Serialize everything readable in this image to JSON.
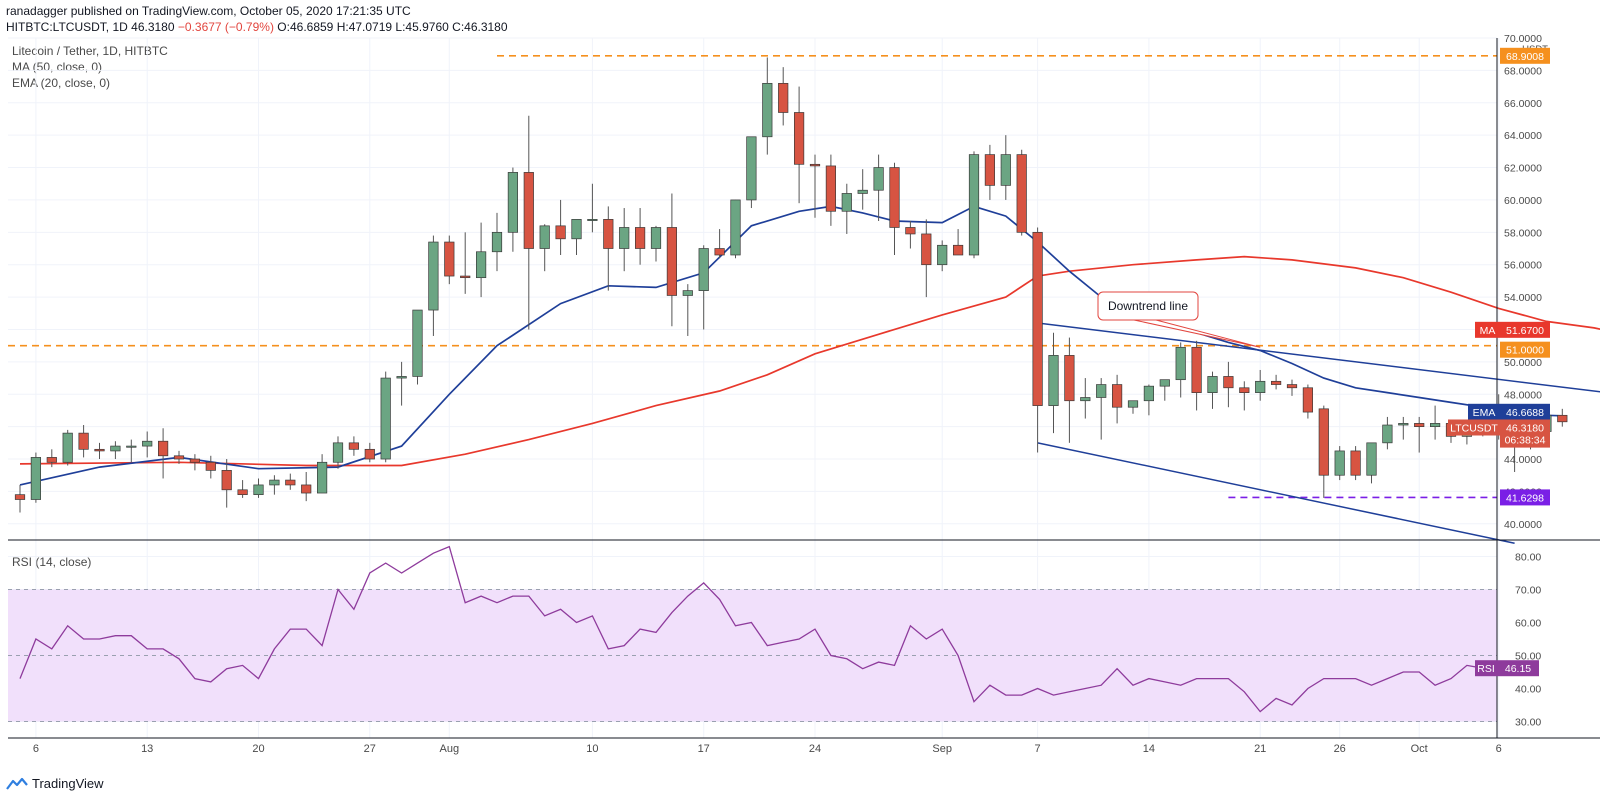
{
  "header": {
    "publisher_line": "ranadagger published on TradingView.com, October 05, 2020 17:21:35 UTC",
    "symbol": "HITBTC:LTCUSDT, 1D",
    "last": "46.3180",
    "change": "−0.3677 (−0.79%)",
    "open": "O:46.6859",
    "high": "H:47.0719",
    "low": "L:45.9760",
    "close": "C:46.3180"
  },
  "legend": {
    "title": "Litecoin / Tether, 1D, HITBTC",
    "ma": "MA (50, close, 0)",
    "ema": "EMA (20, close, 0)",
    "rsi": "RSI (14, close)"
  },
  "footer": {
    "brand": "TradingView",
    "icon": "tradingview-logo-icon"
  },
  "colors": {
    "up": "#6ba583",
    "down": "#d75442",
    "ema": "#1f3f99",
    "ma": "#e8382c",
    "rsi": "#8e3b9c",
    "rsi_band": "#f1e0fb",
    "level": "#f5901e",
    "support": "#7a1fe6",
    "trend": "#1f3f99"
  },
  "chart_data": [
    {
      "type": "candlestick",
      "title": "Litecoin / Tether, 1D, HITBTC",
      "currency": "USDT",
      "ylim": [
        39,
        70
      ],
      "y_ticks": [
        "40.0000",
        "42.0000",
        "44.0000",
        "46.0000",
        "48.0000",
        "50.0000",
        "52.0000",
        "54.0000",
        "56.0000",
        "58.0000",
        "60.0000",
        "62.0000",
        "64.0000",
        "66.0000",
        "68.0000",
        "70.0000"
      ],
      "x_ticks": [
        {
          "label": "6",
          "i": 1
        },
        {
          "label": "13",
          "i": 8
        },
        {
          "label": "20",
          "i": 15
        },
        {
          "label": "27",
          "i": 22
        },
        {
          "label": "Aug",
          "i": 27
        },
        {
          "label": "10",
          "i": 36
        },
        {
          "label": "17",
          "i": 43
        },
        {
          "label": "24",
          "i": 50
        },
        {
          "label": "Sep",
          "i": 58
        },
        {
          "label": "7",
          "i": 64
        },
        {
          "label": "14",
          "i": 71
        },
        {
          "label": "21",
          "i": 78
        },
        {
          "label": "26",
          "i": 83
        },
        {
          "label": "Oct",
          "i": 88
        },
        {
          "label": "6",
          "i": 93
        }
      ],
      "ohlc": [
        [
          41.8,
          42.4,
          40.7,
          41.5
        ],
        [
          41.5,
          44.4,
          41.3,
          44.1
        ],
        [
          44.1,
          44.6,
          43.5,
          43.8
        ],
        [
          43.8,
          45.8,
          43.6,
          45.6
        ],
        [
          45.6,
          46.1,
          44.1,
          44.6
        ],
        [
          44.6,
          45.0,
          44.0,
          44.5
        ],
        [
          44.5,
          45.1,
          44.0,
          44.8
        ],
        [
          44.8,
          45.2,
          43.8,
          44.8
        ],
        [
          44.8,
          45.7,
          44.1,
          45.1
        ],
        [
          45.1,
          45.9,
          42.8,
          44.2
        ],
        [
          44.2,
          44.5,
          43.7,
          44.0
        ],
        [
          44.0,
          44.3,
          43.3,
          43.8
        ],
        [
          43.8,
          44.2,
          42.8,
          43.3
        ],
        [
          43.3,
          44.0,
          41.0,
          42.1
        ],
        [
          42.1,
          42.7,
          41.6,
          41.8
        ],
        [
          41.8,
          42.8,
          41.6,
          42.4
        ],
        [
          42.4,
          43.0,
          41.8,
          42.7
        ],
        [
          42.7,
          43.1,
          42.1,
          42.4
        ],
        [
          42.4,
          43.2,
          41.4,
          41.9
        ],
        [
          41.9,
          44.3,
          41.9,
          43.8
        ],
        [
          43.8,
          45.4,
          43.4,
          45.0
        ],
        [
          45.0,
          45.4,
          44.2,
          44.6
        ],
        [
          44.6,
          45.0,
          43.8,
          44.0
        ],
        [
          44.0,
          49.4,
          43.8,
          49.0
        ],
        [
          49.0,
          50.0,
          47.3,
          49.1
        ],
        [
          49.1,
          53.2,
          48.6,
          53.2
        ],
        [
          53.2,
          57.8,
          51.6,
          57.4
        ],
        [
          57.4,
          57.8,
          54.8,
          55.3
        ],
        [
          55.3,
          58.0,
          54.2,
          55.2
        ],
        [
          55.2,
          58.6,
          54.0,
          56.8
        ],
        [
          56.8,
          59.2,
          55.6,
          58.0
        ],
        [
          58.0,
          62.0,
          56.8,
          61.7
        ],
        [
          61.7,
          65.2,
          52.0,
          57.0
        ],
        [
          57.0,
          58.5,
          55.6,
          58.4
        ],
        [
          58.4,
          60.0,
          56.6,
          57.6
        ],
        [
          57.6,
          58.5,
          56.6,
          58.8
        ],
        [
          58.8,
          61.0,
          58.0,
          58.8
        ],
        [
          58.8,
          59.6,
          54.4,
          57.0
        ],
        [
          57.0,
          59.5,
          55.6,
          58.3
        ],
        [
          58.3,
          59.5,
          56.0,
          57.0
        ],
        [
          57.0,
          58.4,
          56.2,
          58.3
        ],
        [
          58.3,
          60.4,
          52.2,
          54.1
        ],
        [
          54.1,
          54.8,
          51.6,
          54.4
        ],
        [
          54.4,
          57.2,
          52.0,
          57.0
        ],
        [
          57.0,
          58.2,
          56.4,
          56.6
        ],
        [
          56.6,
          60.0,
          56.4,
          60.0
        ],
        [
          60.0,
          63.8,
          59.5,
          63.9
        ],
        [
          63.9,
          68.8,
          62.8,
          67.2
        ],
        [
          67.2,
          68.2,
          64.6,
          65.4
        ],
        [
          65.4,
          67.0,
          59.8,
          62.2
        ],
        [
          62.2,
          62.8,
          58.9,
          62.1
        ],
        [
          62.1,
          62.8,
          58.4,
          59.3
        ],
        [
          59.3,
          61.0,
          57.9,
          60.4
        ],
        [
          60.4,
          61.9,
          59.4,
          60.6
        ],
        [
          60.6,
          62.8,
          58.7,
          62.0
        ],
        [
          62.0,
          62.3,
          56.6,
          58.3
        ],
        [
          58.3,
          58.7,
          57.0,
          57.9
        ],
        [
          57.9,
          58.8,
          54.0,
          56.0
        ],
        [
          56.0,
          57.5,
          55.6,
          57.2
        ],
        [
          57.2,
          58.2,
          56.7,
          56.6
        ],
        [
          56.6,
          63.0,
          56.4,
          62.8
        ],
        [
          62.8,
          63.4,
          60.0,
          60.9
        ],
        [
          60.9,
          64.0,
          60.0,
          62.8
        ],
        [
          62.8,
          63.1,
          57.8,
          58.0
        ],
        [
          58.0,
          58.3,
          44.4,
          47.3
        ],
        [
          47.3,
          51.8,
          45.6,
          50.4
        ],
        [
          50.4,
          51.5,
          45.0,
          47.6
        ],
        [
          47.6,
          49.0,
          46.5,
          47.8
        ],
        [
          47.8,
          49.0,
          45.2,
          48.6
        ],
        [
          48.6,
          49.2,
          46.2,
          47.2
        ],
        [
          47.2,
          47.6,
          46.8,
          47.6
        ],
        [
          47.6,
          48.6,
          46.7,
          48.5
        ],
        [
          48.5,
          48.9,
          47.6,
          48.9
        ],
        [
          48.9,
          51.2,
          47.8,
          50.9
        ],
        [
          50.9,
          51.3,
          47.0,
          48.1
        ],
        [
          48.1,
          49.4,
          47.1,
          49.1
        ],
        [
          49.1,
          50.0,
          47.2,
          48.4
        ],
        [
          48.4,
          48.8,
          47.0,
          48.1
        ],
        [
          48.1,
          49.5,
          47.6,
          48.8
        ],
        [
          48.8,
          49.2,
          48.3,
          48.6
        ],
        [
          48.6,
          48.9,
          47.9,
          48.4
        ],
        [
          48.4,
          48.6,
          46.5,
          46.9
        ],
        [
          47.1,
          47.3,
          41.6,
          43.0
        ],
        [
          43.0,
          44.8,
          42.7,
          44.5
        ],
        [
          44.5,
          44.8,
          42.7,
          43.0
        ],
        [
          43.0,
          45.0,
          42.5,
          45.0
        ],
        [
          45.0,
          46.6,
          44.6,
          46.1
        ],
        [
          46.1,
          46.6,
          45.2,
          46.2
        ],
        [
          46.2,
          46.6,
          44.4,
          46.0
        ],
        [
          46.0,
          47.3,
          45.2,
          46.2
        ],
        [
          46.2,
          46.4,
          45.0,
          45.4
        ],
        [
          45.4,
          46.4,
          44.9,
          45.9
        ],
        [
          45.9,
          46.8,
          45.4,
          46.1
        ],
        [
          46.1,
          48.0,
          45.2,
          45.8
        ],
        [
          46.2,
          46.4,
          43.2,
          45.0
        ],
        [
          45.0,
          45.8,
          44.6,
          45.7
        ],
        [
          45.7,
          46.8,
          45.4,
          46.7
        ],
        [
          46.7,
          47.1,
          46.0,
          46.3
        ]
      ],
      "ema20": [
        [
          0,
          42.4
        ],
        [
          5,
          43.5
        ],
        [
          10,
          44.1
        ],
        [
          15,
          43.4
        ],
        [
          20,
          43.5
        ],
        [
          24,
          44.8
        ],
        [
          27,
          48.0
        ],
        [
          30,
          51.0
        ],
        [
          34,
          53.6
        ],
        [
          37,
          54.7
        ],
        [
          40,
          54.6
        ],
        [
          43,
          55.5
        ],
        [
          46,
          58.4
        ],
        [
          49,
          59.3
        ],
        [
          51,
          59.6
        ],
        [
          53,
          59.2
        ],
        [
          55,
          58.7
        ],
        [
          58,
          58.6
        ],
        [
          60,
          59.6
        ],
        [
          62,
          59.0
        ],
        [
          64,
          57.4
        ],
        [
          66,
          55.6
        ],
        [
          68,
          54.0
        ],
        [
          70,
          52.8
        ],
        [
          72,
          52.3
        ],
        [
          74,
          51.8
        ],
        [
          76,
          51.2
        ],
        [
          78,
          50.7
        ],
        [
          80,
          49.9
        ],
        [
          82,
          49.0
        ],
        [
          84,
          48.4
        ],
        [
          86,
          48.1
        ],
        [
          88,
          47.8
        ],
        [
          90,
          47.5
        ],
        [
          92,
          47.2
        ],
        [
          94,
          46.9
        ],
        [
          96,
          46.7
        ],
        [
          97,
          46.67
        ]
      ],
      "ma50": [
        [
          0,
          43.7
        ],
        [
          10,
          43.8
        ],
        [
          18,
          43.6
        ],
        [
          24,
          43.6
        ],
        [
          28,
          44.3
        ],
        [
          32,
          45.2
        ],
        [
          36,
          46.2
        ],
        [
          40,
          47.3
        ],
        [
          44,
          48.2
        ],
        [
          47,
          49.2
        ],
        [
          50,
          50.5
        ],
        [
          54,
          51.7
        ],
        [
          58,
          52.9
        ],
        [
          62,
          54.0
        ],
        [
          64,
          55.3
        ],
        [
          66,
          55.6
        ],
        [
          70,
          56.0
        ],
        [
          74,
          56.3
        ],
        [
          77,
          56.5
        ],
        [
          80,
          56.3
        ],
        [
          84,
          55.8
        ],
        [
          87,
          55.2
        ],
        [
          90,
          54.3
        ],
        [
          93,
          53.3
        ],
        [
          96,
          52.5
        ],
        [
          99,
          52.1
        ],
        [
          101,
          51.67
        ]
      ],
      "trendlines": [
        {
          "label": "Downtrend line",
          "from": [
            64,
            52.4
          ],
          "to": [
            104,
            47.6
          ]
        },
        {
          "label": "",
          "from": [
            64,
            45.0
          ],
          "to": [
            94,
            38.8
          ]
        }
      ],
      "levels": [
        {
          "value": 68.9008,
          "label": "68.9008",
          "color": "orange"
        },
        {
          "value": 51.0,
          "label": "51.0000",
          "color": "orange"
        },
        {
          "value": 41.6298,
          "label": "41.6298",
          "color": "purple"
        }
      ],
      "price_tags": [
        {
          "name": "MA",
          "value": "51.6700",
          "y": 51.67
        },
        {
          "name": "EMA",
          "value": "46.6688",
          "y": 46.67
        },
        {
          "name": "LTCUSDT",
          "value": "46.3180",
          "y": 46.318
        },
        {
          "name": "",
          "value": "06:38:34",
          "y": 45.2
        }
      ],
      "annotation": {
        "text": "Downtrend line",
        "at": [
          78,
          50.9
        ]
      }
    },
    {
      "type": "line",
      "title": "RSI (14, close)",
      "ylim": [
        25,
        85
      ],
      "y_ticks": [
        "30.00",
        "40.00",
        "50.00",
        "60.00",
        "70.00",
        "80.00"
      ],
      "band": [
        30,
        70
      ],
      "midline": 50,
      "last": {
        "name": "RSI",
        "value": "46.15"
      },
      "values": [
        43,
        55,
        52,
        59,
        55,
        55,
        56,
        56,
        52,
        52,
        49,
        43,
        42,
        46,
        47,
        43,
        52,
        58,
        58,
        53,
        70,
        64,
        75,
        78,
        75,
        78,
        81,
        83,
        66,
        68,
        66,
        68,
        68,
        62,
        64,
        60,
        62,
        52,
        53,
        58,
        57,
        63,
        68,
        72,
        67,
        59,
        60,
        53,
        54,
        55,
        58,
        50,
        49,
        46,
        48,
        47,
        59,
        55,
        58,
        50,
        36,
        41,
        38,
        38,
        40,
        38,
        39,
        40,
        41,
        46,
        41,
        43,
        42,
        41,
        43,
        43,
        43,
        39,
        33,
        37,
        35,
        40,
        43,
        43,
        43,
        41,
        43,
        45,
        45,
        41,
        43,
        47,
        46.15
      ]
    }
  ]
}
